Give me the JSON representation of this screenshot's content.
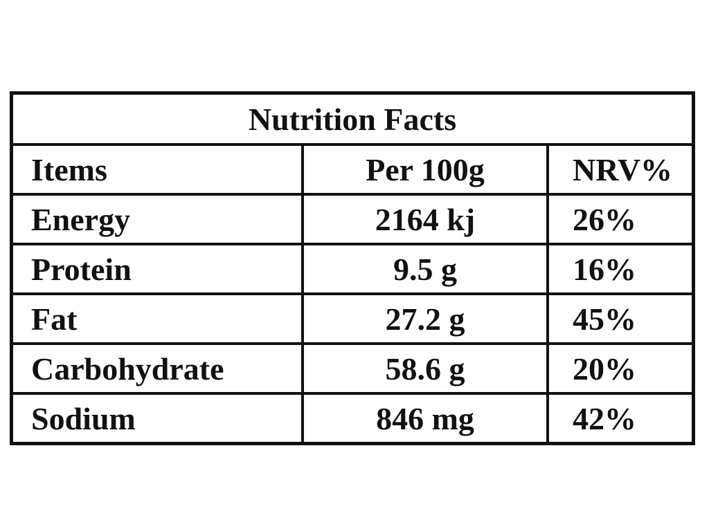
{
  "table": {
    "title": "Nutrition Facts",
    "header": [
      "Items",
      "Per 100g",
      "NRV%"
    ],
    "rows": [
      [
        "Energy",
        "2164 kj",
        "26%"
      ],
      [
        "Protein",
        "9.5 g",
        "16%"
      ],
      [
        "Fat",
        "27.2 g",
        "45%"
      ],
      [
        "Carbohydrate",
        "58.6 g",
        "20%"
      ],
      [
        "Sodium",
        "846 mg",
        "42%"
      ]
    ]
  }
}
